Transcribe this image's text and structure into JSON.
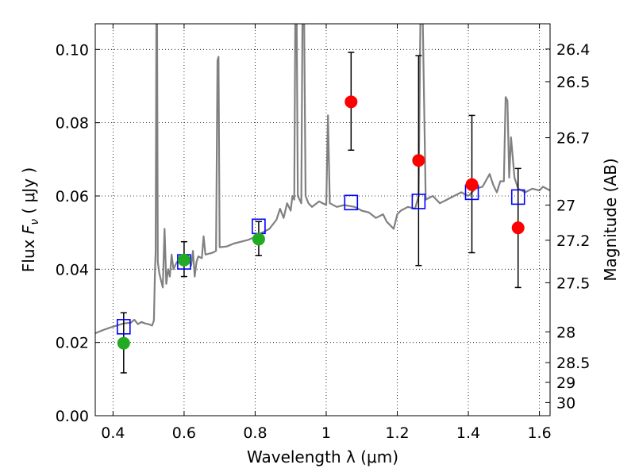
{
  "chart_data": {
    "type": "scatter",
    "xlabel": "Wavelength  λ (μm)",
    "ylabel": "Flux  F_ν  ( μJy )",
    "ylabel_parts": {
      "pre": "Flux  ",
      "var": "F",
      "sub": "ν",
      "post": "  ( μJy )"
    },
    "y2label": "Magnitude (AB)",
    "xlim": [
      0.35,
      1.63
    ],
    "ylim": [
      0.0,
      0.107
    ],
    "grid": true,
    "x_ticks": [
      0.4,
      0.6,
      0.8,
      1.0,
      1.2,
      1.4,
      1.6
    ],
    "x_tick_labels": [
      "0.4",
      "0.6",
      "0.8",
      "1",
      "1.2",
      "1.4",
      "1.6"
    ],
    "y_ticks": [
      0.0,
      0.02,
      0.04,
      0.06,
      0.08,
      0.1
    ],
    "y_tick_labels": [
      "0.00",
      "0.02",
      "0.04",
      "0.06",
      "0.08",
      "0.10"
    ],
    "mag_ticks": [
      {
        "label": "26.4",
        "flux": 0.1001
      },
      {
        "label": "26.5",
        "flux": 0.0912
      },
      {
        "label": "26.7",
        "flux": 0.0759
      },
      {
        "label": "27",
        "flux": 0.0575
      },
      {
        "label": "27.2",
        "flux": 0.0479
      },
      {
        "label": "27.5",
        "flux": 0.0363
      },
      {
        "label": "28",
        "flux": 0.0229
      },
      {
        "label": "28.5",
        "flux": 0.0145
      },
      {
        "label": "29",
        "flux": 0.0091
      },
      {
        "label": "30",
        "flux": 0.0036
      }
    ],
    "series": [
      {
        "kind": "line",
        "color": "#808080",
        "points": [
          [
            0.35,
            0.0225
          ],
          [
            0.37,
            0.0233
          ],
          [
            0.39,
            0.024
          ],
          [
            0.41,
            0.0246
          ],
          [
            0.43,
            0.0252
          ],
          [
            0.45,
            0.0254
          ],
          [
            0.46,
            0.0262
          ],
          [
            0.47,
            0.025
          ],
          [
            0.48,
            0.0256
          ],
          [
            0.49,
            0.0252
          ],
          [
            0.5,
            0.025
          ],
          [
            0.51,
            0.0246
          ],
          [
            0.515,
            0.026
          ],
          [
            0.518,
            0.039
          ],
          [
            0.52,
            0.045
          ],
          [
            0.522,
            0.107
          ],
          [
            0.524,
            0.107
          ],
          [
            0.526,
            0.042
          ],
          [
            0.53,
            0.039
          ],
          [
            0.535,
            0.037
          ],
          [
            0.54,
            0.035
          ],
          [
            0.545,
            0.051
          ],
          [
            0.55,
            0.036
          ],
          [
            0.555,
            0.04
          ],
          [
            0.56,
            0.038
          ],
          [
            0.565,
            0.044
          ],
          [
            0.57,
            0.04
          ],
          [
            0.575,
            0.041
          ],
          [
            0.58,
            0.042
          ],
          [
            0.59,
            0.0425
          ],
          [
            0.6,
            0.0432
          ],
          [
            0.605,
            0.042
          ],
          [
            0.61,
            0.044
          ],
          [
            0.62,
            0.041
          ],
          [
            0.625,
            0.045
          ],
          [
            0.63,
            0.038
          ],
          [
            0.635,
            0.042
          ],
          [
            0.64,
            0.0435
          ],
          [
            0.65,
            0.043
          ],
          [
            0.655,
            0.049
          ],
          [
            0.66,
            0.044
          ],
          [
            0.68,
            0.0445
          ],
          [
            0.69,
            0.045
          ],
          [
            0.694,
            0.097
          ],
          [
            0.697,
            0.098
          ],
          [
            0.7,
            0.046
          ],
          [
            0.72,
            0.0462
          ],
          [
            0.74,
            0.047
          ],
          [
            0.76,
            0.0475
          ],
          [
            0.78,
            0.048
          ],
          [
            0.8,
            0.0488
          ],
          [
            0.82,
            0.05
          ],
          [
            0.84,
            0.051
          ],
          [
            0.86,
            0.0535
          ],
          [
            0.87,
            0.0565
          ],
          [
            0.88,
            0.054
          ],
          [
            0.89,
            0.058
          ],
          [
            0.9,
            0.056
          ],
          [
            0.905,
            0.06
          ],
          [
            0.91,
            0.059
          ],
          [
            0.913,
            0.107
          ],
          [
            0.917,
            0.107
          ],
          [
            0.92,
            0.06
          ],
          [
            0.93,
            0.058
          ],
          [
            0.933,
            0.107
          ],
          [
            0.938,
            0.107
          ],
          [
            0.942,
            0.06
          ],
          [
            0.95,
            0.058
          ],
          [
            0.96,
            0.057
          ],
          [
            0.98,
            0.0585
          ],
          [
            1.0,
            0.0575
          ],
          [
            1.005,
            0.082
          ],
          [
            1.01,
            0.058
          ],
          [
            1.03,
            0.057
          ],
          [
            1.05,
            0.0575
          ],
          [
            1.08,
            0.057
          ],
          [
            1.1,
            0.056
          ],
          [
            1.12,
            0.0555
          ],
          [
            1.14,
            0.054
          ],
          [
            1.16,
            0.055
          ],
          [
            1.17,
            0.053
          ],
          [
            1.19,
            0.051
          ],
          [
            1.2,
            0.055
          ],
          [
            1.21,
            0.056
          ],
          [
            1.23,
            0.057
          ],
          [
            1.25,
            0.0565
          ],
          [
            1.26,
            0.06
          ],
          [
            1.265,
            0.107
          ],
          [
            1.272,
            0.107
          ],
          [
            1.28,
            0.059
          ],
          [
            1.3,
            0.06
          ],
          [
            1.32,
            0.058
          ],
          [
            1.34,
            0.059
          ],
          [
            1.36,
            0.06
          ],
          [
            1.38,
            0.061
          ],
          [
            1.4,
            0.06
          ],
          [
            1.42,
            0.062
          ],
          [
            1.44,
            0.0625
          ],
          [
            1.46,
            0.066
          ],
          [
            1.47,
            0.063
          ],
          [
            1.48,
            0.061
          ],
          [
            1.49,
            0.064
          ],
          [
            1.5,
            0.064
          ],
          [
            1.505,
            0.087
          ],
          [
            1.51,
            0.086
          ],
          [
            1.515,
            0.065
          ],
          [
            1.52,
            0.076
          ],
          [
            1.53,
            0.065
          ],
          [
            1.54,
            0.062
          ],
          [
            1.56,
            0.061
          ],
          [
            1.58,
            0.062
          ],
          [
            1.6,
            0.0615
          ],
          [
            1.61,
            0.0625
          ],
          [
            1.63,
            0.0615
          ]
        ]
      },
      {
        "kind": "squares",
        "color": "#0000ff",
        "points": [
          [
            0.43,
            0.0243
          ],
          [
            0.6,
            0.042
          ],
          [
            0.81,
            0.0517
          ],
          [
            1.07,
            0.0582
          ],
          [
            1.26,
            0.0585
          ],
          [
            1.41,
            0.061
          ],
          [
            1.54,
            0.0597
          ]
        ]
      },
      {
        "kind": "points",
        "color": "#22aa22",
        "points": [
          {
            "x": 0.43,
            "y": 0.0198,
            "yerr_low": 0.0117,
            "yerr_high": 0.0281
          },
          {
            "x": 0.6,
            "y": 0.0425,
            "yerr_low": 0.038,
            "yerr_high": 0.0475
          },
          {
            "x": 0.81,
            "y": 0.0482,
            "yerr_low": 0.0437,
            "yerr_high": 0.053
          }
        ]
      },
      {
        "kind": "points",
        "color": "#ff0000",
        "points": [
          {
            "x": 1.07,
            "y": 0.0857,
            "yerr_low": 0.0725,
            "yerr_high": 0.0992
          },
          {
            "x": 1.26,
            "y": 0.0697,
            "yerr_low": 0.041,
            "yerr_high": 0.0983
          },
          {
            "x": 1.41,
            "y": 0.0631,
            "yerr_low": 0.0445,
            "yerr_high": 0.082
          },
          {
            "x": 1.54,
            "y": 0.0513,
            "yerr_low": 0.035,
            "yerr_high": 0.0675
          }
        ]
      }
    ]
  }
}
